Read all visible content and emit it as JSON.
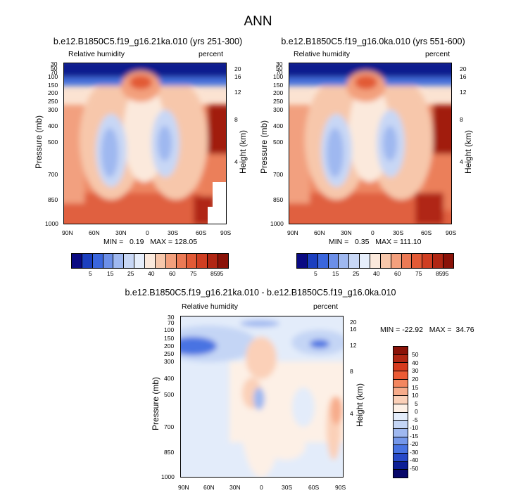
{
  "page_title": "ANN",
  "panels": [
    {
      "title": "b.e12.B1850C5.f19_g16.21ka.010 (yrs 251-300)",
      "left_label": "Relative humidity",
      "right_label": "percent",
      "stats": "MIN =   0.19   MAX = 128.05"
    },
    {
      "title": "b.e12.B1850C5.f19_g16.0ka.010 (yrs 551-600)",
      "left_label": "Relative humidity",
      "right_label": "percent",
      "stats": "MIN =   0.35   MAX = 111.10"
    },
    {
      "title": "b.e12.B1850C5.f19_g16.21ka.010 - b.e12.B1850C5.f19_g16.0ka.010",
      "left_label": "Relative humidity",
      "right_label": "percent",
      "stats": "MIN = -22.92   MAX =  34.76"
    }
  ],
  "axes": {
    "ylabel": "Pressure (mb)",
    "ylabel_right": "Height (km)",
    "xticks": [
      "90N",
      "60N",
      "30N",
      "0",
      "30S",
      "60S",
      "90S"
    ],
    "pressure_ticks": [
      "30",
      "50",
      "70",
      "100",
      "150",
      "200",
      "250",
      "300",
      "400",
      "500",
      "700",
      "850",
      "1000"
    ],
    "pressure_ticks_diff": [
      "30",
      "70",
      "100",
      "150",
      "200",
      "250",
      "300",
      "400",
      "500",
      "700",
      "850",
      "1000"
    ],
    "height_ticks": [
      "20",
      "16",
      "12",
      "8",
      "4"
    ]
  },
  "colorbar_horizontal": {
    "labels": [
      "5",
      "15",
      "25",
      "40",
      "60",
      "75",
      "85",
      "95"
    ],
    "colors": [
      "#0a0a82",
      "#1b3fbf",
      "#3a66dd",
      "#6c8fe8",
      "#9fb8f0",
      "#c8d7f5",
      "#e6eefb",
      "#fbe9dc",
      "#f7c7ab",
      "#f3a07d",
      "#ec7a55",
      "#e25a36",
      "#cf3e22",
      "#b02613",
      "#8a1208"
    ]
  },
  "colorbar_vertical": {
    "labels": [
      "50",
      "40",
      "30",
      "20",
      "15",
      "10",
      "5",
      "0",
      "-5",
      "-10",
      "-15",
      "-20",
      "-30",
      "-40",
      "-50"
    ],
    "colors": [
      "#8a1208",
      "#b02613",
      "#d63a1d",
      "#ec5b35",
      "#f3865f",
      "#f7ab8a",
      "#fbd0b8",
      "#fdf0e6",
      "#e3ecfa",
      "#c4d5f5",
      "#9fb8f0",
      "#7497ea",
      "#4873e2",
      "#2749c8",
      "#0d1f96",
      "#07076a"
    ]
  },
  "chart_data": [
    {
      "type": "heatmap",
      "title": "b.e12.B1850C5.f19_g16.21ka.010 (yrs 251-300)",
      "variable": "Relative humidity",
      "units": "percent",
      "xlabel": "",
      "ylabel": "Pressure (mb)",
      "ylabel_right": "Height (km)",
      "x": [
        "90N",
        "60N",
        "30N",
        "0",
        "30S",
        "60S",
        "90S"
      ],
      "y": [
        30,
        50,
        70,
        100,
        150,
        200,
        250,
        300,
        400,
        500,
        700,
        850,
        1000
      ],
      "y_scale": "log",
      "ylim": [
        1000,
        30
      ],
      "min": 0.19,
      "max": 128.05,
      "levels": [
        5,
        15,
        25,
        40,
        60,
        75,
        85,
        95
      ]
    },
    {
      "type": "heatmap",
      "title": "b.e12.B1850C5.f19_g16.0ka.010 (yrs 551-600)",
      "variable": "Relative humidity",
      "units": "percent",
      "xlabel": "",
      "ylabel": "Pressure (mb)",
      "ylabel_right": "Height (km)",
      "x": [
        "90N",
        "60N",
        "30N",
        "0",
        "30S",
        "60S",
        "90S"
      ],
      "y": [
        30,
        50,
        70,
        100,
        150,
        200,
        250,
        300,
        400,
        500,
        700,
        850,
        1000
      ],
      "y_scale": "log",
      "ylim": [
        1000,
        30
      ],
      "min": 0.35,
      "max": 111.1,
      "levels": [
        5,
        15,
        25,
        40,
        60,
        75,
        85,
        95
      ]
    },
    {
      "type": "heatmap",
      "title": "b.e12.B1850C5.f19_g16.21ka.010 - b.e12.B1850C5.f19_g16.0ka.010",
      "variable": "Relative humidity",
      "units": "percent",
      "xlabel": "",
      "ylabel": "Pressure (mb)",
      "ylabel_right": "Height (km)",
      "x": [
        "90N",
        "60N",
        "30N",
        "0",
        "30S",
        "60S",
        "90S"
      ],
      "y": [
        30,
        70,
        100,
        150,
        200,
        250,
        300,
        400,
        500,
        700,
        850,
        1000
      ],
      "y_scale": "log",
      "ylim": [
        1000,
        30
      ],
      "min": -22.92,
      "max": 34.76,
      "levels": [
        -50,
        -40,
        -30,
        -20,
        -15,
        -10,
        -5,
        0,
        5,
        10,
        15,
        20,
        30,
        40,
        50
      ]
    }
  ]
}
